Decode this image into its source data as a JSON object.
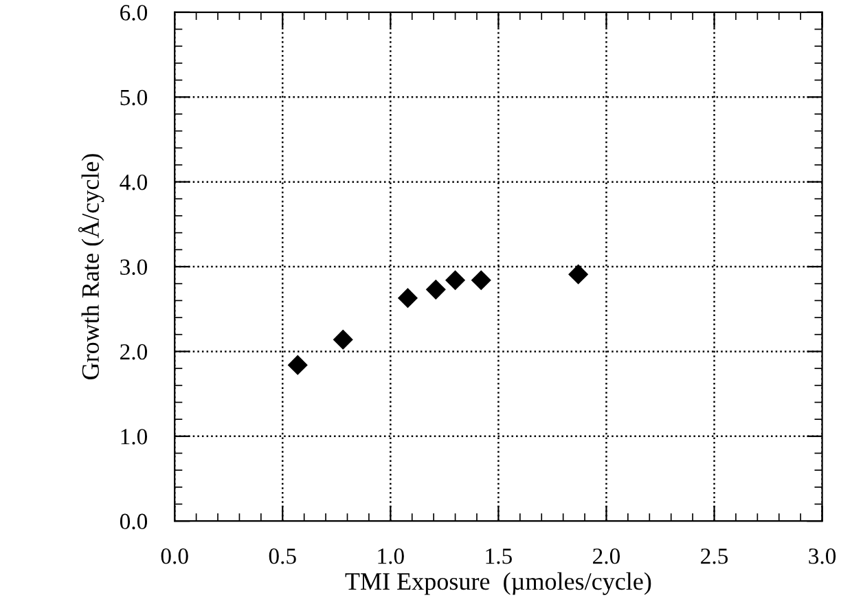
{
  "chart_data": {
    "type": "scatter",
    "xlabel": "TMI Exposure  (µmoles/cycle)",
    "ylabel": "Growth Rate (Å/cycle)",
    "x": [
      0.57,
      0.78,
      1.08,
      1.21,
      1.3,
      1.42,
      1.87
    ],
    "series": [
      {
        "color": "#000000",
        "values": [
          1.84,
          2.14,
          2.63,
          2.73,
          2.84,
          2.84,
          2.91
        ]
      }
    ],
    "marker": "diamond",
    "grid": true,
    "xlim": [
      0,
      3
    ],
    "ylim": [
      0,
      6
    ],
    "xticks": [
      {
        "value": 0,
        "label": "0.0"
      },
      0.5,
      {
        "value": 1,
        "label": "1.0"
      },
      1.5,
      {
        "value": 2,
        "label": "2.0"
      },
      2.5,
      {
        "value": 3,
        "label": "3.0"
      }
    ],
    "yticks": [
      {
        "value": 0,
        "label": "0.0"
      },
      {
        "value": 1,
        "label": "1.0"
      },
      {
        "value": 2,
        "label": "2.0"
      },
      {
        "value": 3,
        "label": "3.0"
      },
      {
        "value": 4,
        "label": "4.0"
      },
      {
        "value": 5,
        "label": "5.0"
      },
      {
        "value": 6,
        "label": "6.0"
      }
    ]
  }
}
